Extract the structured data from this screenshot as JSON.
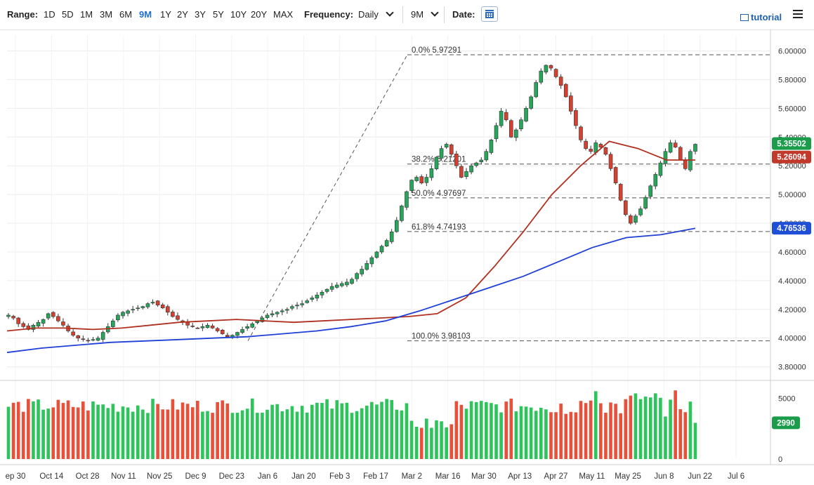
{
  "toolbar": {
    "range_label": "Range:",
    "ranges": [
      "1D",
      "5D",
      "1M",
      "3M",
      "6M",
      "9M",
      "1Y",
      "2Y",
      "3Y",
      "5Y",
      "10Y",
      "20Y",
      "MAX"
    ],
    "active_range": "9M",
    "frequency_label": "Frequency:",
    "frequency_value": "Daily",
    "period_value": "9M",
    "date_label": "Date:",
    "tutorial_label": "tutorial"
  },
  "chart_data": {
    "type": "candlestick",
    "y_axis": {
      "ticks": [
        "6.00000",
        "5.80000",
        "5.60000",
        "5.40000",
        "5.20000",
        "5.00000",
        "4.80000",
        "4.60000",
        "4.40000",
        "4.20000",
        "4.00000",
        "3.80000"
      ],
      "range": [
        3.72,
        6.11
      ]
    },
    "x_axis_labels": [
      "ep 30",
      "Oct 14",
      "Oct 28",
      "Nov 11",
      "Nov 25",
      "Dec 9",
      "Dec 23",
      "Jan 6",
      "Jan 20",
      "Feb 3",
      "Feb 17",
      "Mar 2",
      "Mar 16",
      "Mar 30",
      "Apr 13",
      "Apr 27",
      "May 11",
      "May 25",
      "Jun 8",
      "Jun 22",
      "Jul 6"
    ],
    "fibonacci_levels": [
      {
        "label": "0.0% 5.97291",
        "value": 5.97291
      },
      {
        "label": "38.2% 5.21201",
        "value": 5.21201
      },
      {
        "label": "50.0% 4.97697",
        "value": 4.97697
      },
      {
        "label": "61.8% 4.74193",
        "value": 4.74193
      },
      {
        "label": "100.0% 3.98103",
        "value": 3.98103
      }
    ],
    "price_badges": [
      {
        "value": 5.35502,
        "text": "5.35502",
        "color": "#1a9c4b"
      },
      {
        "value": 5.26094,
        "text": "5.26094",
        "color": "#c0392b"
      },
      {
        "value": 4.76536,
        "text": "4.76536",
        "color": "#1f4fd6"
      }
    ],
    "close_series": [
      4.16,
      4.14,
      4.1,
      4.08,
      4.06,
      4.09,
      4.11,
      4.13,
      4.17,
      4.15,
      4.12,
      4.09,
      4.05,
      4.02,
      4.0,
      3.99,
      3.98,
      3.99,
      4.0,
      4.04,
      4.08,
      4.12,
      4.16,
      4.18,
      4.19,
      4.2,
      4.21,
      4.22,
      4.24,
      4.25,
      4.23,
      4.21,
      4.18,
      4.15,
      4.13,
      4.11,
      4.09,
      4.08,
      4.07,
      4.08,
      4.09,
      4.07,
      4.05,
      4.03,
      4.01,
      4.02,
      4.04,
      4.06,
      4.08,
      4.1,
      4.12,
      4.14,
      4.16,
      4.17,
      4.18,
      4.19,
      4.2,
      4.22,
      4.23,
      4.24,
      4.26,
      4.28,
      4.3,
      4.32,
      4.34,
      4.36,
      4.37,
      4.38,
      4.39,
      4.41,
      4.45,
      4.48,
      4.52,
      4.56,
      4.6,
      4.64,
      4.68,
      4.74,
      4.82,
      4.92,
      5.02,
      5.1,
      5.12,
      5.08,
      5.12,
      5.18,
      5.26,
      5.32,
      5.35,
      5.28,
      5.2,
      5.12,
      5.16,
      5.2,
      5.22,
      5.24,
      5.3,
      5.38,
      5.48,
      5.58,
      5.52,
      5.4,
      5.45,
      5.52,
      5.6,
      5.68,
      5.78,
      5.86,
      5.9,
      5.88,
      5.82,
      5.76,
      5.68,
      5.58,
      5.48,
      5.38,
      5.32,
      5.3,
      5.36,
      5.33,
      5.28,
      5.18,
      5.08,
      4.96,
      4.86,
      4.8,
      4.85,
      4.9,
      4.98,
      5.06,
      5.14,
      5.22,
      5.3,
      5.36,
      5.33,
      5.24,
      5.18,
      5.3,
      5.35
    ],
    "ma50": [
      4.05,
      4.07,
      4.07,
      4.06,
      4.07,
      4.09,
      4.11,
      4.12,
      4.13,
      4.12,
      4.11,
      4.12,
      4.13,
      4.14,
      4.15,
      4.17,
      4.28,
      4.5,
      4.74,
      5.0,
      5.2,
      5.37,
      5.32,
      5.24,
      5.24
    ],
    "ma200": [
      3.9,
      3.93,
      3.95,
      3.97,
      3.98,
      3.99,
      4.0,
      4.01,
      4.03,
      4.05,
      4.08,
      4.12,
      4.19,
      4.27,
      4.35,
      4.43,
      4.53,
      4.63,
      4.7,
      4.72,
      4.765
    ],
    "volume": {
      "ticks": [
        "5000",
        "0"
      ],
      "last_text": "2990",
      "last_value": 2990,
      "max": 6200
    }
  }
}
